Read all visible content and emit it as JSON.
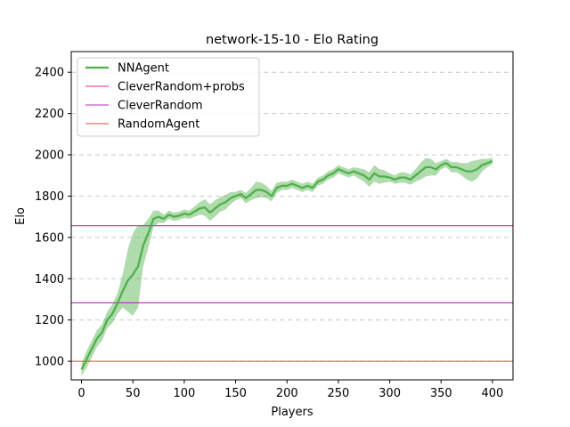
{
  "chart_data": {
    "type": "line",
    "title": "network-15-10 - Elo Rating",
    "xlabel": "Players",
    "ylabel": "Elo",
    "xlim": [
      -10,
      420
    ],
    "ylim": [
      910,
      2500
    ],
    "xticks": [
      0,
      50,
      100,
      150,
      200,
      250,
      300,
      350,
      400
    ],
    "yticks": [
      1000,
      1200,
      1400,
      1600,
      1800,
      2000,
      2200,
      2400
    ],
    "grid": "y-dashed",
    "legend_position": "top-left",
    "series": [
      {
        "name": "NNAgent",
        "color": "#4daf4a",
        "x": [
          0,
          5,
          10,
          15,
          20,
          25,
          30,
          35,
          40,
          45,
          50,
          55,
          60,
          65,
          70,
          75,
          80,
          85,
          90,
          95,
          100,
          105,
          110,
          115,
          120,
          125,
          130,
          135,
          140,
          145,
          150,
          155,
          160,
          165,
          170,
          175,
          180,
          185,
          190,
          195,
          200,
          205,
          210,
          215,
          220,
          225,
          230,
          235,
          240,
          245,
          250,
          255,
          260,
          265,
          270,
          275,
          280,
          285,
          290,
          295,
          300,
          305,
          310,
          315,
          320,
          325,
          330,
          335,
          340,
          345,
          350,
          355,
          360,
          365,
          370,
          375,
          380,
          385,
          390,
          395,
          400
        ],
        "values": [
          960,
          1010,
          1060,
          1110,
          1140,
          1200,
          1230,
          1280,
          1340,
          1390,
          1420,
          1460,
          1560,
          1620,
          1690,
          1700,
          1690,
          1710,
          1700,
          1705,
          1715,
          1710,
          1725,
          1740,
          1745,
          1720,
          1740,
          1760,
          1770,
          1790,
          1800,
          1810,
          1790,
          1810,
          1830,
          1830,
          1820,
          1800,
          1840,
          1850,
          1850,
          1860,
          1850,
          1840,
          1850,
          1840,
          1870,
          1880,
          1900,
          1910,
          1930,
          1920,
          1910,
          1920,
          1910,
          1900,
          1880,
          1910,
          1895,
          1895,
          1890,
          1880,
          1890,
          1890,
          1880,
          1900,
          1920,
          1940,
          1940,
          1930,
          1950,
          1960,
          1940,
          1940,
          1930,
          1920,
          1920,
          1930,
          1950,
          1960,
          1970
        ],
        "band": [
          30,
          40,
          40,
          40,
          40,
          40,
          45,
          50,
          80,
          150,
          200,
          200,
          100,
          70,
          40,
          30,
          20,
          20,
          20,
          20,
          20,
          20,
          25,
          30,
          40,
          40,
          40,
          35,
          35,
          30,
          20,
          20,
          25,
          30,
          40,
          35,
          30,
          25,
          25,
          20,
          20,
          20,
          20,
          20,
          20,
          20,
          20,
          20,
          20,
          20,
          20,
          20,
          20,
          20,
          25,
          30,
          35,
          40,
          35,
          30,
          20,
          20,
          25,
          25,
          25,
          30,
          40,
          45,
          40,
          30,
          20,
          20,
          25,
          25,
          30,
          40,
          50,
          45,
          30,
          20,
          15
        ]
      },
      {
        "name": "CleverRandom+probs",
        "color": "#e7298a",
        "y": 1657
      },
      {
        "name": "CleverRandom",
        "color": "#b22fb5",
        "y": 1283
      },
      {
        "name": "RandomAgent",
        "color": "#e34a33",
        "y": 1000
      }
    ]
  }
}
